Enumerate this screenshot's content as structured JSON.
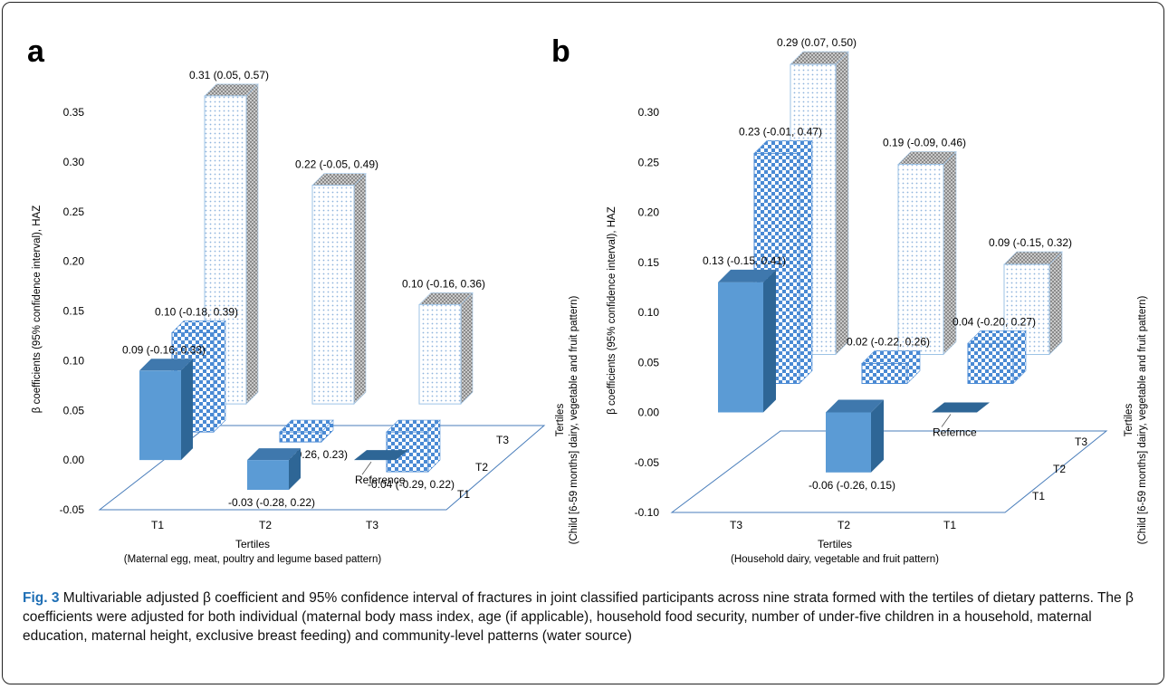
{
  "figure": {
    "caption_label": "Fig. 3",
    "caption_text": "Multivariable adjusted β coefficient and 95% confidence interval of fractures in joint classified participants across nine strata formed with the tertiles of dietary patterns. The β coefficients were adjusted for both individual (maternal body mass index, age (if applicable), household food security, number of under-five children in a household, maternal education, maternal height, exclusive breast feeding) and community-level patterns (water source)"
  },
  "colors": {
    "solid_front": "#5b9bd5",
    "solid_side": "#2e6696",
    "solid_top": "#3f78ad",
    "checker": "#4a8ad4",
    "dots_line": "#9dc3e6",
    "side_gray": "#9a9a9a",
    "floor_line": "#4a7ebb"
  },
  "chart_data": [
    {
      "panel_label": "a",
      "type": "bar",
      "ylabel": "β coefficients (95% confidence interval), HAZ",
      "xlabel_title": "Tertiles",
      "xlabel_sub": "(Maternal egg, meat, poultry and legume based pattern)",
      "depth_label_title": "Tertiles",
      "depth_label_sub": "(Child [6-59 months] dairy, vegetable and fruit pattern)",
      "ylim": [
        -0.05,
        0.35
      ],
      "yticks": [
        "0.35",
        "0.30",
        "0.25",
        "0.20",
        "0.15",
        "0.10",
        "0.05",
        "0.00",
        "-0.05"
      ],
      "categories": [
        "T1",
        "T2",
        "T3"
      ],
      "depth_categories": [
        "T1",
        "T2",
        "T3"
      ],
      "series": [
        {
          "depth": "T1",
          "pattern": "solid",
          "values": [
            0.09,
            -0.03,
            0
          ],
          "labels": [
            "0.09 (-0.16, 0.33)",
            "-0.03 (-0.28, 0.22)",
            "Reference"
          ]
        },
        {
          "depth": "T2",
          "pattern": "checker",
          "values": [
            0.1,
            -0.01,
            -0.04
          ],
          "labels": [
            "0.10 (-0.18, 0.39)",
            "-0.01 (-0.26, 0.23)",
            "-0.04 (-0.29, 0.22)"
          ]
        },
        {
          "depth": "T3",
          "pattern": "dots",
          "values": [
            0.31,
            0.22,
            0.1
          ],
          "labels": [
            "0.31 (0.05, 0.57)",
            "0.22 (-0.05, 0.49)",
            "0.10 (-0.16, 0.36)"
          ]
        }
      ]
    },
    {
      "panel_label": "b",
      "type": "bar",
      "ylabel": "β coefficients (95% confidence interval), HAZ",
      "xlabel_title": "Tertiles",
      "xlabel_sub": "(Household dairy, vegetable and fruit pattern)",
      "depth_label_title": "Tertiles",
      "depth_label_sub": "(Child [6-59 months] dairy, vegetable and fruit pattern)",
      "ylim": [
        -0.1,
        0.3
      ],
      "yticks": [
        "0.30",
        "0.25",
        "0.20",
        "0.15",
        "0.10",
        "0.05",
        "0.00",
        "-0.05",
        "-0.10"
      ],
      "categories": [
        "T3",
        "T2",
        "T1"
      ],
      "depth_categories": [
        "T1",
        "T2",
        "T3"
      ],
      "series": [
        {
          "depth": "T1",
          "pattern": "solid",
          "values": [
            0.13,
            -0.06,
            0
          ],
          "labels": [
            "0.13 (-0.15, 0.41)",
            "-0.06 (-0.26, 0.15)",
            "Refernce"
          ]
        },
        {
          "depth": "T2",
          "pattern": "checker",
          "values": [
            0.23,
            0.02,
            0.04
          ],
          "labels": [
            "0.23 (-0.01, 0.47)",
            "0.02 (-0.22, 0.26)",
            "0.04 (-0.20, 0.27)"
          ]
        },
        {
          "depth": "T3",
          "pattern": "dots",
          "values": [
            0.29,
            0.19,
            0.09
          ],
          "labels": [
            "0.29 (0.07, 0.50)",
            "0.19 (-0.09, 0.46)",
            "0.09 (-0.15, 0.32)"
          ]
        }
      ]
    }
  ]
}
